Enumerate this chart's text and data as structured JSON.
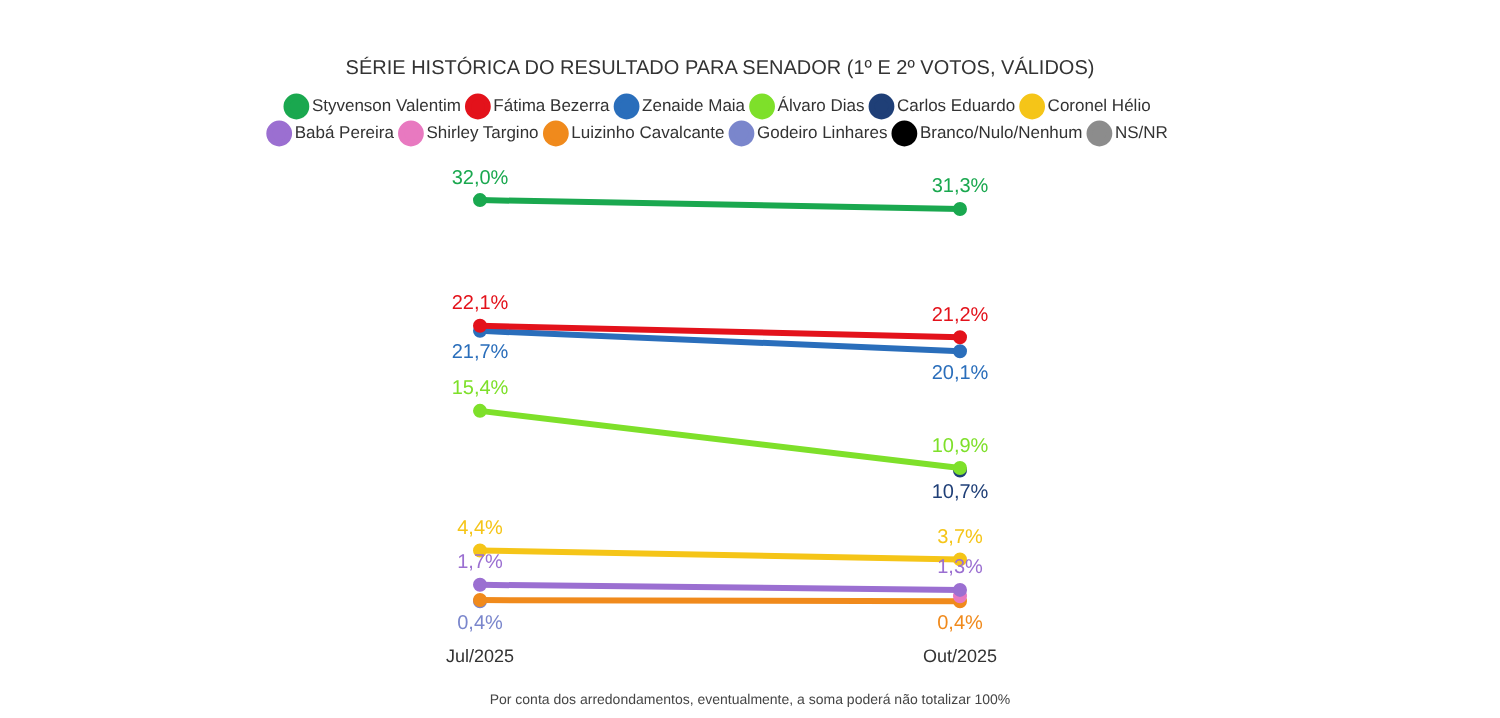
{
  "chart_data": {
    "type": "line",
    "title": "SÉRIE HISTÓRICA DO RESULTADO PARA SENADOR (1º E 2º VOTOS, VÁLIDOS)",
    "categories": [
      "Jul/2025",
      "Out/2025"
    ],
    "series": [
      {
        "name": "Styvenson Valentim",
        "color": "#1aa84f",
        "values": [
          32.0,
          31.3
        ],
        "value_labels": [
          "32,0%",
          "31,3%"
        ]
      },
      {
        "name": "Fátima Bezerra",
        "color": "#e3121b",
        "values": [
          22.1,
          21.2
        ],
        "value_labels": [
          "22,1%",
          "21,2%"
        ]
      },
      {
        "name": "Zenaide Maia",
        "color": "#2a6ebb",
        "values": [
          21.7,
          20.1
        ],
        "value_labels": [
          "21,7%",
          "20,1%"
        ]
      },
      {
        "name": "Álvaro Dias",
        "color": "#7ee02a",
        "values": [
          15.4,
          10.9
        ],
        "value_labels": [
          "15,4%",
          "10,9%"
        ]
      },
      {
        "name": "Carlos Eduardo",
        "color": "#1f3f77",
        "values": [
          null,
          10.7
        ],
        "value_labels": [
          null,
          "10,7%"
        ]
      },
      {
        "name": "Coronel Hélio",
        "color": "#f5c518",
        "values": [
          4.4,
          3.7
        ],
        "value_labels": [
          "4,4%",
          "3,7%"
        ]
      },
      {
        "name": "Babá Pereira",
        "color": "#9b6fd1",
        "values": [
          1.7,
          1.3
        ],
        "value_labels": [
          "1,7%",
          "1,3%"
        ]
      },
      {
        "name": "Shirley Targino",
        "color": "#e879c0",
        "values": [
          null,
          0.8
        ],
        "value_labels": [
          null,
          null
        ]
      },
      {
        "name": "Luizinho Cavalcante",
        "color": "#f08a1c",
        "values": [
          0.5,
          0.4
        ],
        "value_labels": [
          null,
          "0,4%"
        ]
      },
      {
        "name": "Godeiro Linhares",
        "color": "#7a86cc",
        "values": [
          0.4,
          null
        ],
        "value_labels": [
          "0,4%",
          null
        ]
      },
      {
        "name": "Branco/Nulo/Nenhum",
        "color": "#000000",
        "values": [
          null,
          null
        ]
      },
      {
        "name": "NS/NR",
        "color": "#8c8c8c",
        "values": [
          null,
          null
        ]
      }
    ],
    "tick_labels": "x",
    "grid": false,
    "legend": "top",
    "marker": "circle",
    "line_style": "solid",
    "annotations": [
      "Por conta dos arredondamentos, eventualmente, a soma poderá não totalizar 100%"
    ]
  }
}
